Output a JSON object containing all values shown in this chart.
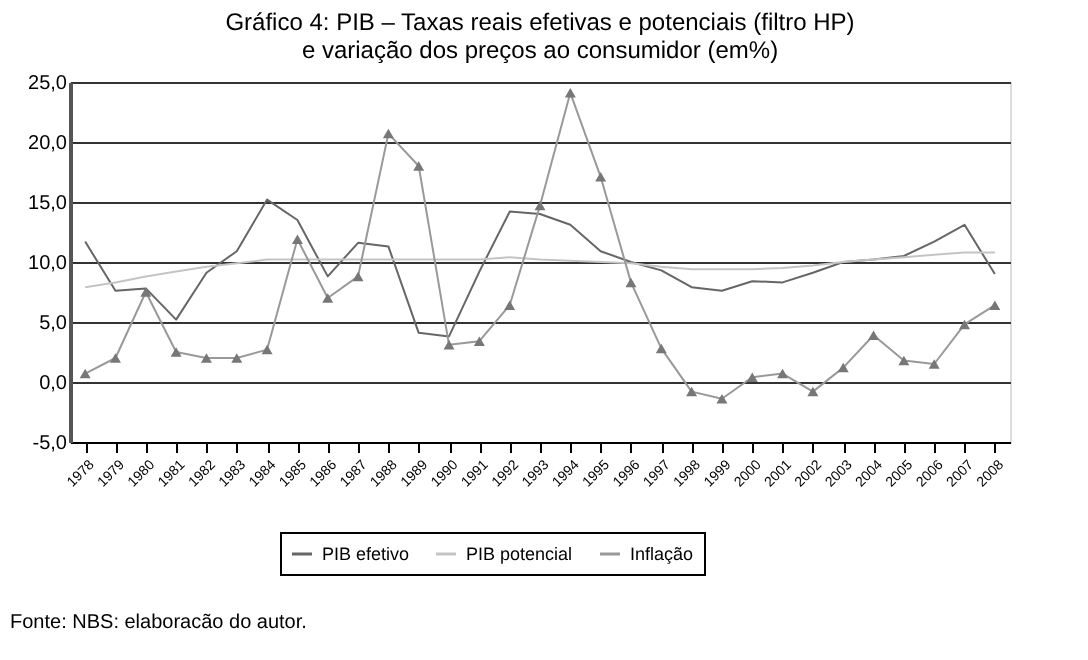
{
  "chart_data": {
    "type": "line",
    "title": "Gráfico 4: PIB – Taxas reais efetivas e potenciais (filtro HP)\ne variação dos preços ao consumidor (em%)",
    "categories": [
      "1978",
      "1979",
      "1980",
      "1981",
      "1982",
      "1983",
      "1984",
      "1985",
      "1986",
      "1987",
      "1988",
      "1989",
      "1990",
      "1991",
      "1992",
      "1993",
      "1994",
      "1995",
      "1996",
      "1997",
      "1998",
      "1999",
      "2000",
      "2001",
      "2002",
      "2003",
      "2004",
      "2005",
      "2006",
      "2007",
      "2008"
    ],
    "series": [
      {
        "name": "PIB efetivo",
        "color": "#666666",
        "marker": "none",
        "values": [
          11.7,
          7.6,
          7.8,
          5.2,
          9.1,
          10.9,
          15.2,
          13.5,
          8.8,
          11.6,
          11.3,
          4.1,
          3.8,
          9.2,
          14.2,
          14.0,
          13.1,
          10.9,
          10.0,
          9.3,
          7.9,
          7.6,
          8.4,
          8.3,
          9.1,
          10.0,
          10.2,
          10.5,
          11.7,
          13.1,
          9.0
        ]
      },
      {
        "name": "PIB potencial",
        "color": "#c4c4c4",
        "marker": "none",
        "values": [
          7.9,
          8.3,
          8.8,
          9.2,
          9.6,
          9.9,
          10.2,
          10.2,
          10.2,
          10.2,
          10.2,
          10.2,
          10.2,
          10.2,
          10.4,
          10.2,
          10.1,
          10.0,
          9.9,
          9.6,
          9.4,
          9.4,
          9.4,
          9.5,
          9.7,
          10.0,
          10.2,
          10.4,
          10.6,
          10.8,
          10.8
        ]
      },
      {
        "name": "Inflação",
        "color": "#999999",
        "marker": "triangle",
        "values": [
          0.7,
          2.0,
          7.5,
          2.5,
          2.0,
          2.0,
          2.7,
          11.9,
          7.0,
          8.8,
          20.7,
          18.0,
          3.1,
          3.4,
          6.4,
          14.7,
          24.1,
          17.1,
          8.3,
          2.8,
          -0.8,
          -1.4,
          0.4,
          0.7,
          -0.8,
          1.2,
          3.9,
          1.8,
          1.5,
          4.8,
          6.4
        ]
      }
    ],
    "ylim": [
      -5,
      25
    ],
    "yticks": [
      {
        "value": -5,
        "label": "-5,0"
      },
      {
        "value": 0,
        "label": "0,0"
      },
      {
        "value": 5,
        "label": "5,0"
      },
      {
        "value": 10,
        "label": "10,0"
      },
      {
        "value": 15,
        "label": "15,0"
      },
      {
        "value": 20,
        "label": "20,0"
      },
      {
        "value": 25,
        "label": "25,0"
      }
    ],
    "grid": "y",
    "legend": "bottom",
    "annotations": [
      "Fonte: NBS: elaboracão do autor."
    ]
  }
}
